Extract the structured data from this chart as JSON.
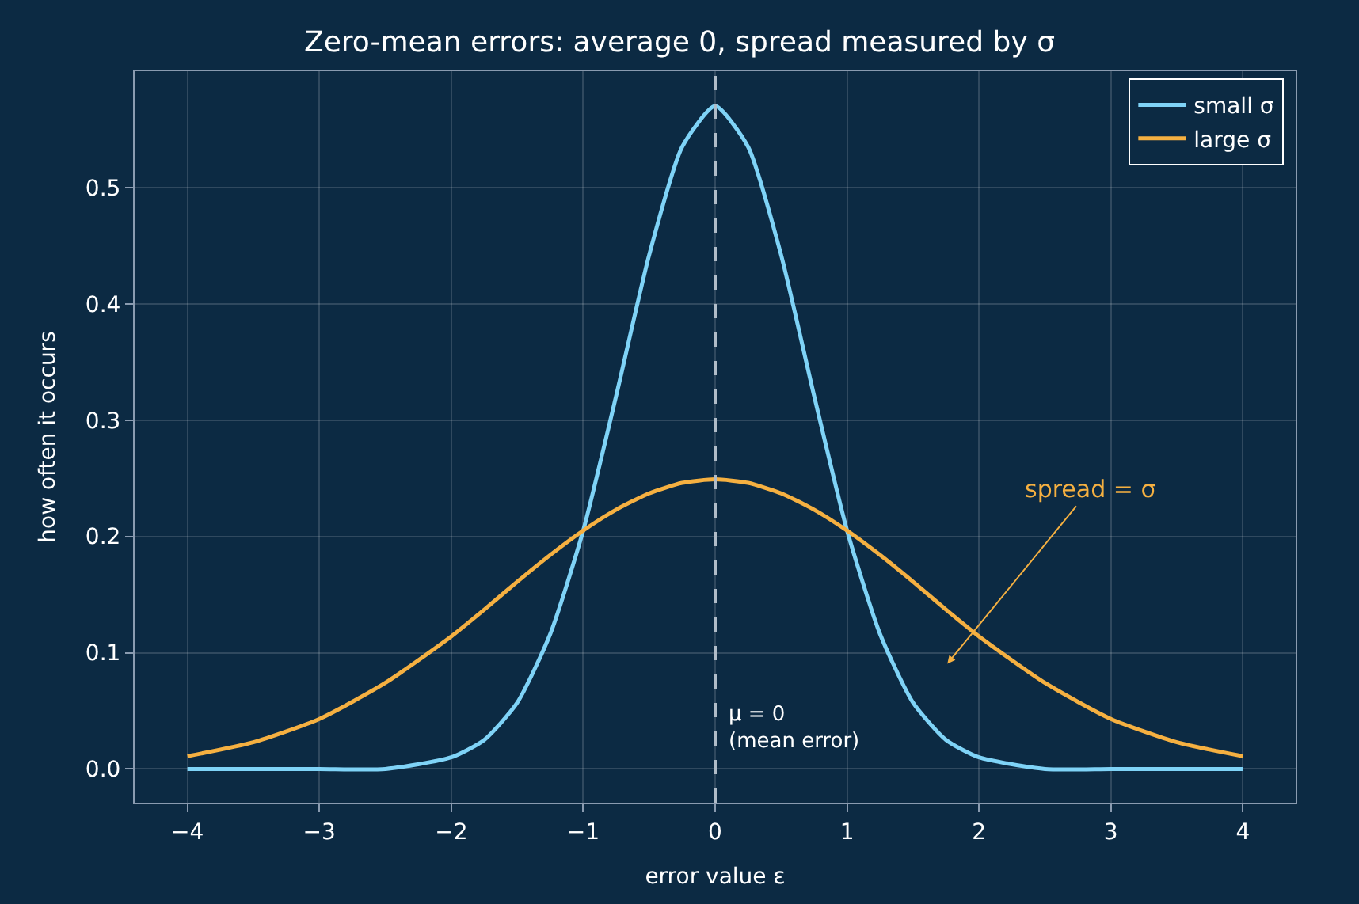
{
  "chart_data": {
    "type": "line",
    "title": "Zero-mean errors: average 0, spread measured by σ",
    "xlabel": "error value ε",
    "ylabel": "how often it occurs",
    "x": [
      -4,
      -3.5,
      -3,
      -2.5,
      -2,
      -1.75,
      -1.5,
      -1.25,
      -1,
      -0.75,
      -0.5,
      -0.25,
      0,
      0.25,
      0.5,
      0.75,
      1,
      1.25,
      1.5,
      1.75,
      2,
      2.5,
      3,
      3.5,
      4
    ],
    "series": [
      {
        "name": "small σ",
        "color": "#7fd3f7",
        "values": [
          0,
          0,
          0,
          0,
          0.01,
          0.025,
          0.057,
          0.116,
          0.205,
          0.321,
          0.442,
          0.535,
          0.57,
          0.535,
          0.442,
          0.321,
          0.205,
          0.116,
          0.057,
          0.025,
          0.01,
          0,
          0,
          0,
          0
        ]
      },
      {
        "name": "large σ",
        "color": "#f5b041",
        "values": [
          0.011,
          0.023,
          0.043,
          0.074,
          0.114,
          0.137,
          0.161,
          0.184,
          0.205,
          0.223,
          0.237,
          0.246,
          0.249,
          0.246,
          0.237,
          0.223,
          0.205,
          0.184,
          0.161,
          0.137,
          0.114,
          0.074,
          0.043,
          0.023,
          0.011
        ]
      }
    ],
    "xlim": [
      -4.4,
      4.4
    ],
    "xticks": [
      {
        "value": -4,
        "label": "−4"
      },
      {
        "value": -3,
        "label": "−3"
      },
      {
        "value": -2,
        "label": "−2"
      },
      {
        "value": -1,
        "label": "−1"
      },
      0,
      1,
      2,
      3,
      4
    ],
    "ylim": [
      -0.029,
      0.6
    ],
    "yticks": [
      {
        "value": 0,
        "label": "0.0"
      },
      0.1,
      0.2,
      0.3,
      0.4,
      0.5
    ],
    "ref_lines": [
      {
        "axis": "x",
        "value": 0,
        "label": "μ = 0\n(mean error)",
        "color": "#b0bcc8",
        "line_style": "dashed"
      }
    ],
    "annotations": [
      "spread = σ"
    ],
    "grid": true,
    "legend": "top right",
    "marker": "none",
    "line_style": "solid"
  }
}
